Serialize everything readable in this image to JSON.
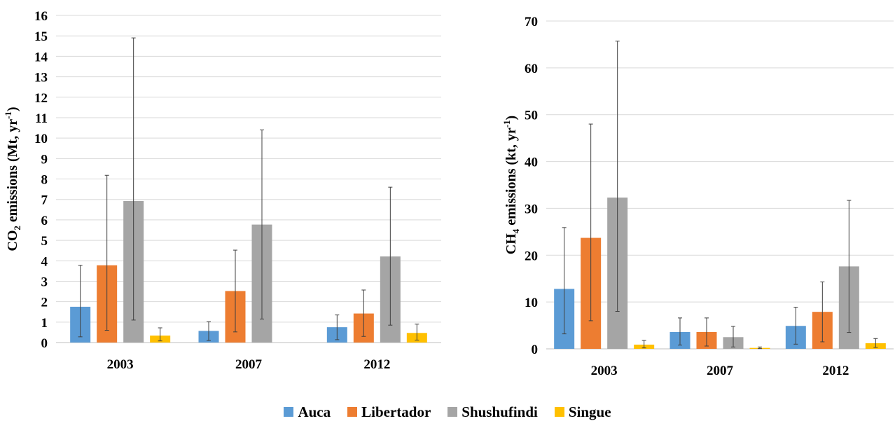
{
  "colors": {
    "Auca": "#5B9BD5",
    "Libertador": "#ED7D31",
    "Shushufindi": "#A5A5A5",
    "Singue": "#FFC000",
    "grid": "#D9D9D9",
    "axis": "#BFBFBF",
    "errorbar": "#404040"
  },
  "legend": {
    "items": [
      {
        "label": "Auca",
        "color": "#5B9BD5"
      },
      {
        "label": "Libertador",
        "color": "#ED7D31"
      },
      {
        "label": "Shushufindi",
        "color": "#A5A5A5"
      },
      {
        "label": "Singue",
        "color": "#FFC000"
      }
    ]
  },
  "chart_data": [
    {
      "type": "bar",
      "ylabel": {
        "main": "CO",
        "sub": "2",
        "mid": " emissions (Mt, yr",
        "sup": "-1",
        "end": ")"
      },
      "xlabel": "",
      "ylim": [
        0,
        16
      ],
      "ystep": 1,
      "grid": true,
      "categories": [
        "2003",
        "2007",
        "2012"
      ],
      "series": [
        {
          "name": "Auca",
          "values": [
            1.75,
            0.57,
            0.75
          ],
          "err_low": [
            0.28,
            0.1,
            0.14
          ],
          "err_high": [
            3.78,
            1.02,
            1.35
          ]
        },
        {
          "name": "Libertador",
          "values": [
            3.78,
            2.52,
            1.42
          ],
          "err_low": [
            0.6,
            0.52,
            0.3
          ],
          "err_high": [
            8.18,
            4.52,
            2.57
          ]
        },
        {
          "name": "Shushufindi",
          "values": [
            6.92,
            5.77,
            4.21
          ],
          "err_low": [
            1.1,
            1.15,
            0.85
          ],
          "err_high": [
            14.9,
            10.4,
            7.6
          ]
        },
        {
          "name": "Singue",
          "values": [
            0.34,
            null,
            0.47
          ],
          "err_low": [
            0.08,
            null,
            0.12
          ],
          "err_high": [
            0.72,
            null,
            0.9
          ]
        }
      ]
    },
    {
      "type": "bar",
      "ylabel": {
        "main": "CH",
        "sub": "4",
        "mid": " emissions (kt, yr",
        "sup": "-1",
        "end": ")"
      },
      "xlabel": "",
      "ylim": [
        0,
        70
      ],
      "ystep": 10,
      "grid": true,
      "categories": [
        "2003",
        "2007",
        "2012"
      ],
      "series": [
        {
          "name": "Auca",
          "values": [
            12.8,
            3.6,
            4.9
          ],
          "err_low": [
            3.2,
            0.8,
            1.0
          ],
          "err_high": [
            25.9,
            6.6,
            8.9
          ]
        },
        {
          "name": "Libertador",
          "values": [
            23.7,
            3.6,
            7.9
          ],
          "err_low": [
            6.0,
            0.6,
            1.5
          ],
          "err_high": [
            48.0,
            6.6,
            14.3
          ]
        },
        {
          "name": "Shushufindi",
          "values": [
            32.3,
            2.5,
            17.6
          ],
          "err_low": [
            8.0,
            0.4,
            3.5
          ],
          "err_high": [
            65.7,
            4.8,
            31.7
          ]
        },
        {
          "name": "Singue",
          "values": [
            0.9,
            0.2,
            1.2
          ],
          "err_low": [
            0.2,
            0.05,
            0.3
          ],
          "err_high": [
            1.8,
            0.4,
            2.2
          ]
        }
      ]
    }
  ]
}
